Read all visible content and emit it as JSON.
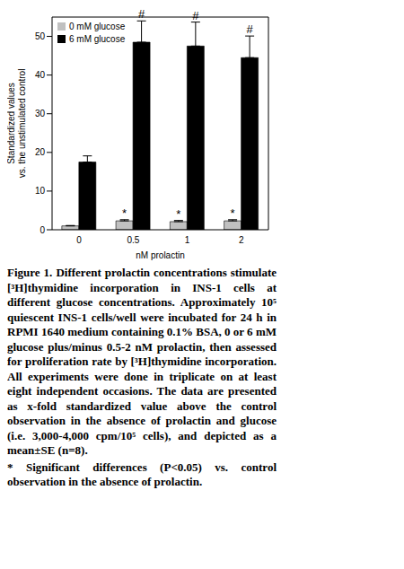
{
  "chart_data": {
    "type": "bar",
    "categories": [
      "0",
      "0.5",
      "1",
      "2"
    ],
    "xlabel": "nM prolactin",
    "ylabel": [
      "Standardized values",
      "vs. the unstimulated control"
    ],
    "series": [
      {
        "name": "0 mM glucose",
        "color": "#c0c0c0",
        "values": [
          1,
          2.3,
          2.1,
          2.3
        ],
        "errors": [
          0.1,
          0.3,
          0.3,
          0.3
        ]
      },
      {
        "name": "6 mM glucose",
        "color": "#000000",
        "values": [
          17.5,
          48.5,
          47.5,
          44.5
        ],
        "errors": [
          1.6,
          5.5,
          6.2,
          5.6
        ]
      }
    ],
    "ylim": [
      0,
      55
    ],
    "yticks": [
      0,
      10,
      20,
      30,
      40,
      50
    ],
    "legend": "upper left",
    "grid": false,
    "annotations": [
      {
        "category": "0.5",
        "series": "0 mM glucose",
        "text": "*"
      },
      {
        "category": "1",
        "series": "0 mM glucose",
        "text": "*"
      },
      {
        "category": "2",
        "series": "0 mM glucose",
        "text": "*"
      },
      {
        "category": "0.5",
        "series": "6 mM glucose",
        "text": "#"
      },
      {
        "category": "1",
        "series": "6 mM glucose",
        "text": "#"
      },
      {
        "category": "2",
        "series": "6 mM glucose",
        "text": "#"
      }
    ]
  },
  "caption": {
    "label": "Figure 1.",
    "text": "Different prolactin concentrations stimulate [³H]thymidine incorporation in INS-1 cells at different glucose concentrations. Approximately 10⁵ quiescent INS-1 cells/well were incubated for 24 h in RPMI 1640 medium containing 0.1% BSA, 0 or 6 mM glucose plus/minus 0.5-2 nM prolactin, then assessed for proliferation rate by [³H]thymidine incorporation. All experiments were done in triplicate on at least eight independent occasions. The data are presented as x-fold standardized value above the control observation in the absence of prolactin and glucose (i.e. 3,000-4,000 cpm/10⁵ cells), and depicted as a mean±SE (n=8).",
    "note": "* Significant differences (P<0.05) vs. control observation in the absence of prolactin."
  }
}
